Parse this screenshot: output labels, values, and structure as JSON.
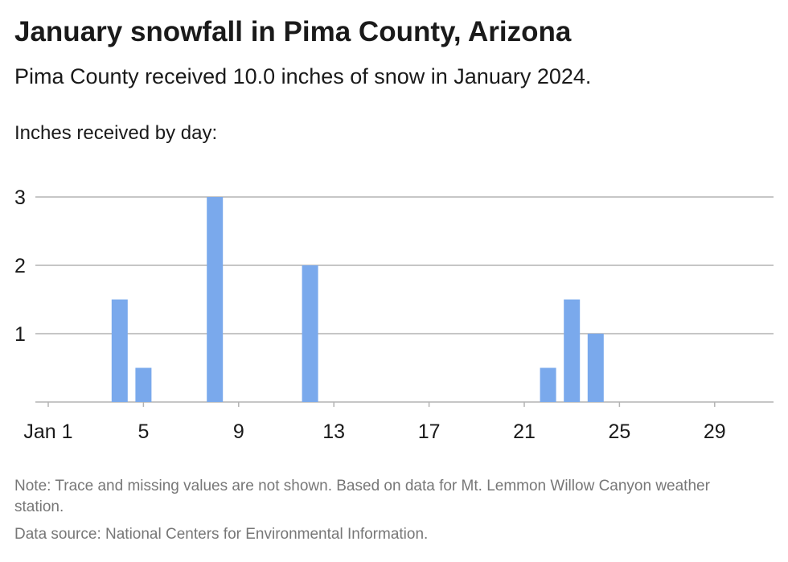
{
  "header": {
    "title": "January snowfall in Pima County, Arizona",
    "subtitle": "Pima County received 10.0 inches of snow in January 2024.",
    "axis_caption": "Inches received by day:"
  },
  "footer": {
    "note": "Note: Trace and missing values are not shown. Based on data for Mt. Lemmon Willow Canyon weather station.",
    "source": "Data source: National Centers for Environmental Information."
  },
  "colors": {
    "bar": "#7aa9ec",
    "grid": "#b3b3b3",
    "text": "#1a1a1a",
    "muted": "#777777"
  },
  "chart_data": {
    "type": "bar",
    "title": "January snowfall in Pima County, Arizona",
    "ylabel": "Inches received by day:",
    "xlim": [
      1,
      31
    ],
    "ylim": [
      0,
      3
    ],
    "y_ticks": [
      1,
      2,
      3
    ],
    "x_ticks": [
      {
        "day": 1,
        "label": "Jan 1"
      },
      {
        "day": 5,
        "label": "5"
      },
      {
        "day": 9,
        "label": "9"
      },
      {
        "day": 13,
        "label": "13"
      },
      {
        "day": 17,
        "label": "17"
      },
      {
        "day": 21,
        "label": "21"
      },
      {
        "day": 25,
        "label": "25"
      },
      {
        "day": 29,
        "label": "29"
      }
    ],
    "grid": true,
    "points": [
      {
        "day": 4,
        "inches": 1.5
      },
      {
        "day": 5,
        "inches": 0.5
      },
      {
        "day": 8,
        "inches": 3.0
      },
      {
        "day": 12,
        "inches": 2.0
      },
      {
        "day": 22,
        "inches": 0.5
      },
      {
        "day": 23,
        "inches": 1.5
      },
      {
        "day": 24,
        "inches": 1.0
      }
    ]
  }
}
